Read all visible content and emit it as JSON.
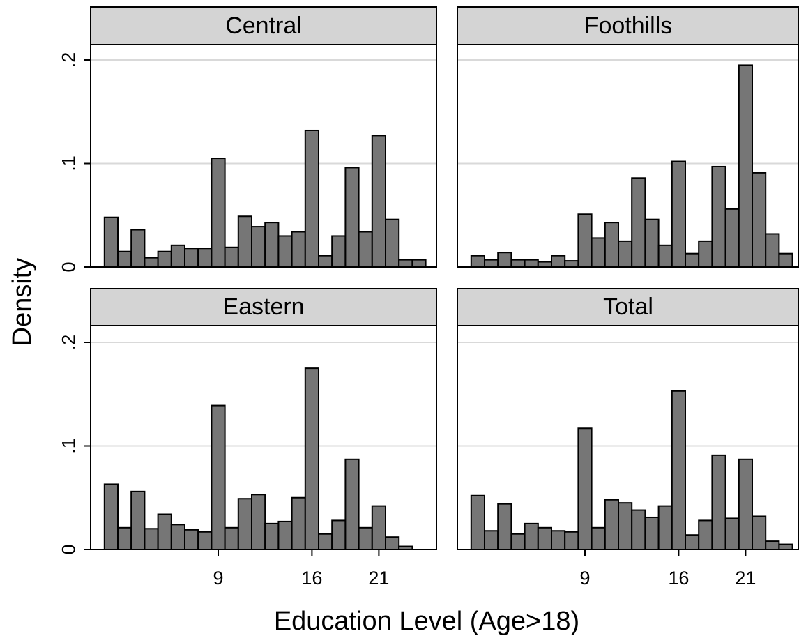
{
  "chart_data": {
    "type": "bar",
    "xlabel": "Education Level (Age>18)",
    "ylabel": "Density",
    "y_ticks": [
      {
        "value": 0,
        "label": "0"
      },
      {
        "value": 0.1,
        "label": ".1"
      },
      {
        "value": 0.2,
        "label": ".2"
      }
    ],
    "x_ticks": [
      {
        "value": 9,
        "label": "9"
      },
      {
        "value": 16,
        "label": "16"
      },
      {
        "value": 21,
        "label": "21"
      }
    ],
    "ylim": [
      0,
      0.2
    ],
    "xlim": [
      1,
      24
    ],
    "grid": true,
    "colors": {
      "bar_fill": "#767676",
      "strip_fill": "#d4d4d4",
      "grid": "#d9d9d9"
    },
    "panels": [
      {
        "title": "Central",
        "x": [
          1,
          2,
          3,
          4,
          5,
          6,
          7,
          8,
          9,
          10,
          11,
          12,
          13,
          14,
          15,
          16,
          17,
          18,
          19,
          20,
          21,
          22,
          23,
          24
        ],
        "values": [
          0.048,
          0.015,
          0.036,
          0.009,
          0.015,
          0.021,
          0.018,
          0.018,
          0.105,
          0.019,
          0.049,
          0.039,
          0.043,
          0.03,
          0.034,
          0.132,
          0.011,
          0.03,
          0.096,
          0.034,
          0.127,
          0.046,
          0.007,
          0.007
        ]
      },
      {
        "title": "Foothills",
        "x": [
          1,
          2,
          3,
          4,
          5,
          6,
          7,
          8,
          9,
          10,
          11,
          12,
          13,
          14,
          15,
          16,
          17,
          18,
          19,
          20,
          21,
          22,
          23,
          24
        ],
        "values": [
          0.011,
          0.007,
          0.014,
          0.007,
          0.007,
          0.005,
          0.011,
          0.006,
          0.051,
          0.028,
          0.043,
          0.025,
          0.086,
          0.046,
          0.021,
          0.102,
          0.013,
          0.025,
          0.097,
          0.056,
          0.195,
          0.091,
          0.032,
          0.013
        ]
      },
      {
        "title": "Eastern",
        "x": [
          1,
          2,
          3,
          4,
          5,
          6,
          7,
          8,
          9,
          10,
          11,
          12,
          13,
          14,
          15,
          16,
          17,
          18,
          19,
          20,
          21,
          22,
          23,
          24
        ],
        "values": [
          0.063,
          0.021,
          0.056,
          0.02,
          0.034,
          0.024,
          0.019,
          0.017,
          0.139,
          0.021,
          0.049,
          0.053,
          0.025,
          0.027,
          0.05,
          0.175,
          0.015,
          0.028,
          0.087,
          0.021,
          0.042,
          0.012,
          0.003,
          0.0
        ]
      },
      {
        "title": "Total",
        "x": [
          1,
          2,
          3,
          4,
          5,
          6,
          7,
          8,
          9,
          10,
          11,
          12,
          13,
          14,
          15,
          16,
          17,
          18,
          19,
          20,
          21,
          22,
          23,
          24
        ],
        "values": [
          0.052,
          0.018,
          0.044,
          0.015,
          0.025,
          0.021,
          0.018,
          0.017,
          0.117,
          0.021,
          0.048,
          0.045,
          0.038,
          0.031,
          0.042,
          0.153,
          0.014,
          0.028,
          0.091,
          0.03,
          0.087,
          0.032,
          0.008,
          0.005
        ]
      }
    ]
  }
}
